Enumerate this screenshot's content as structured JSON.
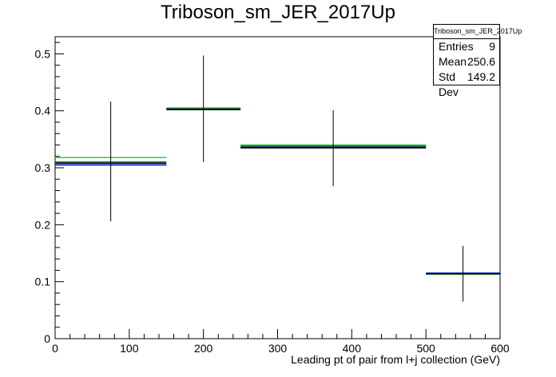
{
  "chart_data": {
    "type": "histogram",
    "title": "Triboson_sm_JER_2017Up",
    "xlabel": "Leading pt of pair from l+j collection (GeV)",
    "ylabel": "",
    "xlim": [
      0,
      600
    ],
    "ylim": [
      0,
      0.53
    ],
    "x_ticks": [
      0,
      100,
      200,
      300,
      400,
      500,
      600
    ],
    "y_ticks": [
      0,
      0.1,
      0.2,
      0.3,
      0.4,
      0.5
    ],
    "grid": false,
    "bins": [
      [
        0,
        150
      ],
      [
        150,
        250
      ],
      [
        250,
        500
      ],
      [
        500,
        600
      ]
    ],
    "series": [
      {
        "values": [
          0.318,
          0.405,
          0.34,
          0.113
        ],
        "color": "#33cc33"
      },
      {
        "values": [
          0.31,
          0.404,
          0.338,
          0.114
        ],
        "color": "#1f6b2a"
      },
      {
        "values": [
          0.305,
          0.402,
          0.336,
          0.115
        ],
        "color": "#0000cc"
      },
      {
        "values": [
          0.308,
          0.402,
          0.335,
          0.114
        ],
        "color": "#000000"
      }
    ],
    "errors": [
      {
        "x": 75,
        "y": 0.308,
        "low": 0.206,
        "high": 0.416
      },
      {
        "x": 200,
        "y": 0.402,
        "low": 0.31,
        "high": 0.497
      },
      {
        "x": 375,
        "y": 0.335,
        "low": 0.268,
        "high": 0.401
      },
      {
        "x": 550,
        "y": 0.114,
        "low": 0.065,
        "high": 0.163
      }
    ]
  },
  "stats": {
    "title": "Triboson_sm_JER_2017Up",
    "entries_label": "Entries",
    "entries": "9",
    "mean_label": "Mean",
    "mean": "250.6",
    "std_label": "Std Dev",
    "std": "149.2"
  }
}
